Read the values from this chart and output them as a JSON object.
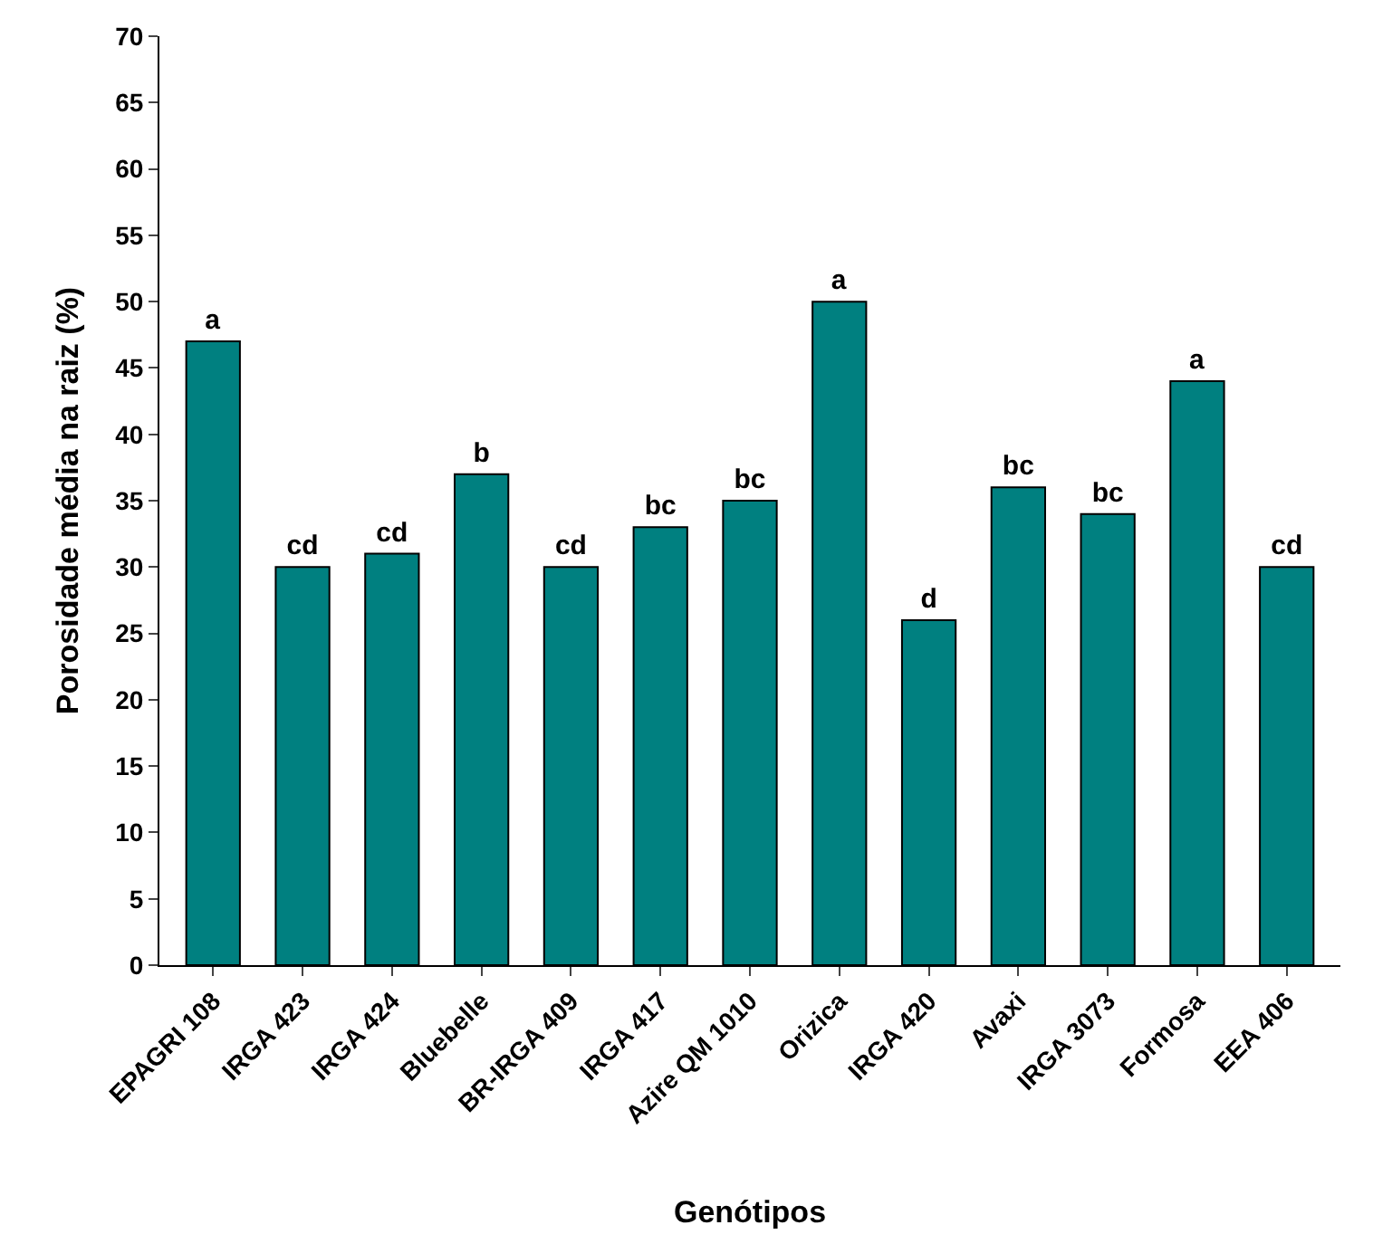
{
  "chart_data": {
    "type": "bar",
    "xlabel": "Genótipos",
    "ylabel": "Porosidade média na raiz (%)",
    "categories": [
      "EPAGRI 108",
      "IRGA 423",
      "IRGA 424",
      "Bluebelle",
      "BR-IRGA 409",
      "IRGA 417",
      "Azire QM 1010",
      "Orizica",
      "IRGA 420",
      "Avaxi",
      "IRGA 3073",
      "Formosa",
      "EEA 406"
    ],
    "values": [
      47,
      30,
      31,
      37,
      30,
      33,
      35,
      50,
      26,
      36,
      34,
      44,
      30
    ],
    "value_labels": [
      "a",
      "cd",
      "cd",
      "b",
      "cd",
      "bc",
      "bc",
      "a",
      "d",
      "bc",
      "bc",
      "a",
      "cd"
    ],
    "color": "#008080",
    "ylim": [
      0,
      70
    ],
    "yticks": [
      0,
      5,
      10,
      15,
      20,
      25,
      30,
      35,
      40,
      45,
      50,
      55,
      60,
      65,
      70
    ]
  }
}
